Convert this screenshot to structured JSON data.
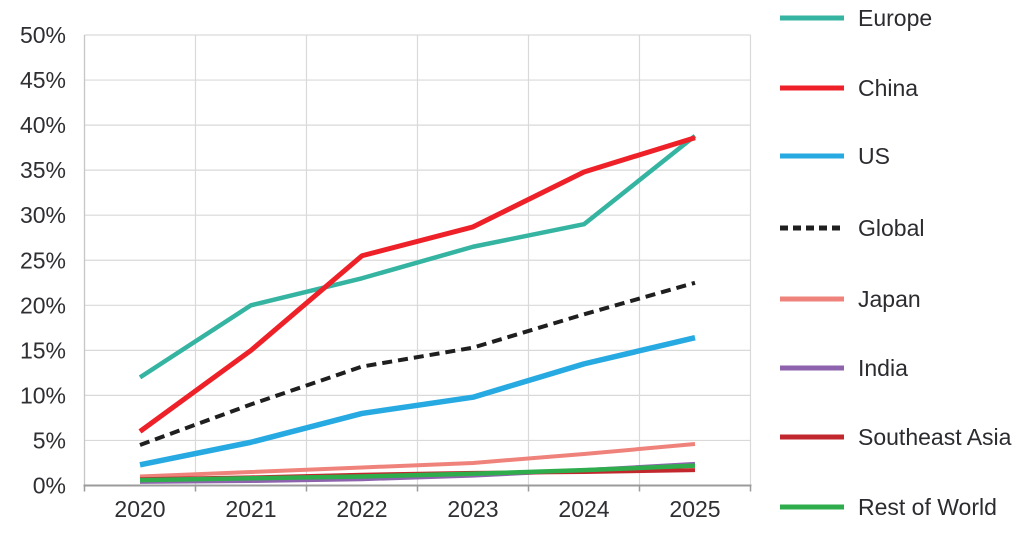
{
  "chart_data": {
    "type": "line",
    "x_labels": [
      "2020",
      "2021",
      "2022",
      "2023",
      "2024",
      "2025"
    ],
    "y_tick_labels": [
      "0%",
      "5%",
      "10%",
      "15%",
      "20%",
      "25%",
      "30%",
      "35%",
      "40%",
      "45%",
      "50%"
    ],
    "ylim": [
      0,
      50
    ],
    "ytick_step": 5,
    "grid": true,
    "legend_position": "right",
    "series": [
      {
        "name": "Europe",
        "color": "#35b4a2",
        "dash": null,
        "width": 4.5,
        "values": [
          12,
          20,
          23,
          26.5,
          29,
          38.8
        ]
      },
      {
        "name": "China",
        "color": "#ee2129",
        "dash": null,
        "width": 5,
        "values": [
          6,
          15,
          25.5,
          28.7,
          34.8,
          38.6
        ]
      },
      {
        "name": "US",
        "color": "#27a9e1",
        "dash": null,
        "width": 5.5,
        "values": [
          2.3,
          4.8,
          8,
          9.8,
          13.5,
          16.4
        ]
      },
      {
        "name": "Global",
        "color": "#1f1f1f",
        "dash": "10 6",
        "width": 4,
        "values": [
          4.5,
          9,
          13.2,
          15.3,
          19,
          22.5
        ]
      },
      {
        "name": "Japan",
        "color": "#ef837b",
        "dash": null,
        "width": 4,
        "values": [
          1,
          1.5,
          2,
          2.5,
          3.5,
          4.6
        ]
      },
      {
        "name": "India",
        "color": "#8d63ad",
        "dash": null,
        "width": 4,
        "values": [
          0.4,
          0.5,
          0.7,
          1.1,
          1.7,
          2.4
        ]
      },
      {
        "name": "Southeast Asia",
        "color": "#c1272d",
        "dash": null,
        "width": 4,
        "values": [
          0.7,
          0.9,
          1.2,
          1.4,
          1.5,
          1.7
        ]
      },
      {
        "name": "Rest of World",
        "color": "#2fad4d",
        "dash": null,
        "width": 4.5,
        "values": [
          0.6,
          0.8,
          1.0,
          1.3,
          1.7,
          2.2
        ]
      }
    ]
  }
}
